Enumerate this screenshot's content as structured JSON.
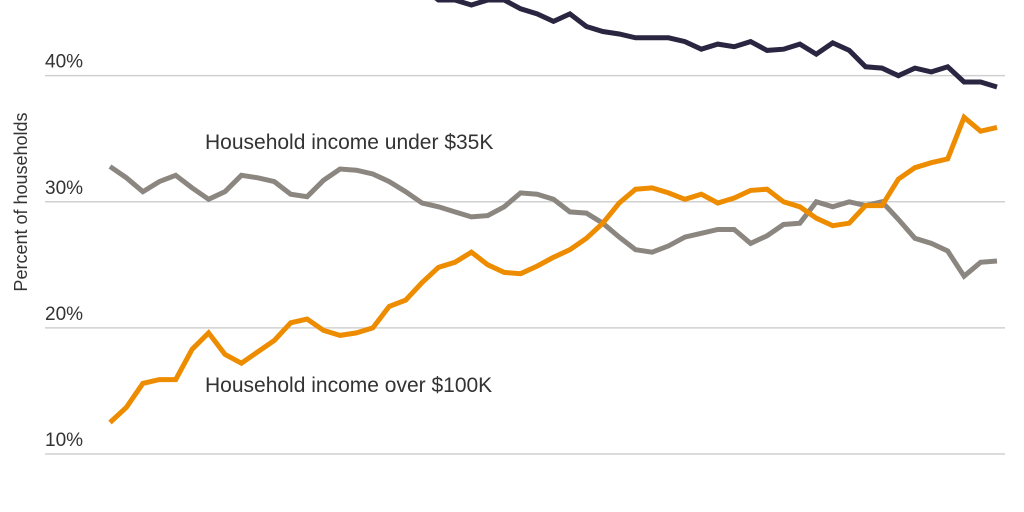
{
  "chart_data": {
    "type": "line",
    "title": "",
    "xlabel": "",
    "ylabel": "Percent of households",
    "ylim": [
      5.4,
      46.0
    ],
    "grid": true,
    "yticks": [
      {
        "value": 40,
        "label": "40%"
      },
      {
        "value": 30,
        "label": "30%"
      },
      {
        "value": 20,
        "label": "20%"
      },
      {
        "value": 10,
        "label": "10%"
      }
    ],
    "annotations": [
      {
        "text": "Household income under $35K",
        "series": 1
      },
      {
        "text": "Household income over $100K",
        "series": 2
      }
    ],
    "series": [
      {
        "color": "#2a2540",
        "values": [
          null,
          null,
          null,
          null,
          null,
          null,
          null,
          null,
          null,
          null,
          null,
          null,
          null,
          null,
          null,
          null,
          null,
          null,
          null,
          47.0,
          46.0,
          46.0,
          45.6,
          46.0,
          46.0,
          45.3,
          44.9,
          44.3,
          44.9,
          43.9,
          43.5,
          43.3,
          43.0,
          43.0,
          43.0,
          42.7,
          42.1,
          42.5,
          42.3,
          42.7,
          42.0,
          42.1,
          42.5,
          41.7,
          42.6,
          42.0,
          40.7,
          40.6,
          40.0,
          40.6,
          40.3,
          40.7,
          39.5,
          39.5,
          39.1
        ]
      },
      {
        "name": "Household income under $35K",
        "color": "#8c8680",
        "values": [
          32.8,
          31.9,
          30.8,
          31.6,
          32.1,
          31.1,
          30.2,
          30.8,
          32.1,
          31.9,
          31.6,
          30.6,
          30.4,
          31.7,
          32.6,
          32.5,
          32.2,
          31.6,
          30.8,
          29.9,
          29.6,
          29.2,
          28.8,
          28.9,
          29.6,
          30.7,
          30.6,
          30.2,
          29.2,
          29.1,
          28.3,
          27.2,
          26.2,
          26.0,
          26.5,
          27.2,
          27.5,
          27.8,
          27.8,
          26.7,
          27.3,
          28.2,
          28.3,
          30.0,
          29.6,
          30.0,
          29.7,
          30.0,
          28.6,
          27.1,
          26.7,
          26.1,
          24.1,
          25.2,
          25.3
        ]
      },
      {
        "name": "Household income over $100K",
        "color": "#ee8c00",
        "values": [
          12.5,
          13.7,
          15.6,
          15.9,
          15.9,
          18.3,
          19.6,
          17.9,
          17.2,
          18.1,
          19.0,
          20.4,
          20.7,
          19.8,
          19.4,
          19.6,
          20.0,
          21.7,
          22.2,
          23.6,
          24.8,
          25.2,
          26.0,
          25.0,
          24.4,
          24.3,
          24.9,
          25.6,
          26.2,
          27.1,
          28.3,
          29.9,
          31.0,
          31.1,
          30.7,
          30.2,
          30.6,
          29.9,
          30.3,
          30.9,
          31.0,
          30.0,
          29.6,
          28.7,
          28.1,
          28.3,
          29.7,
          29.7,
          31.8,
          32.7,
          33.1,
          33.4,
          36.7,
          35.6,
          35.9
        ]
      }
    ]
  }
}
